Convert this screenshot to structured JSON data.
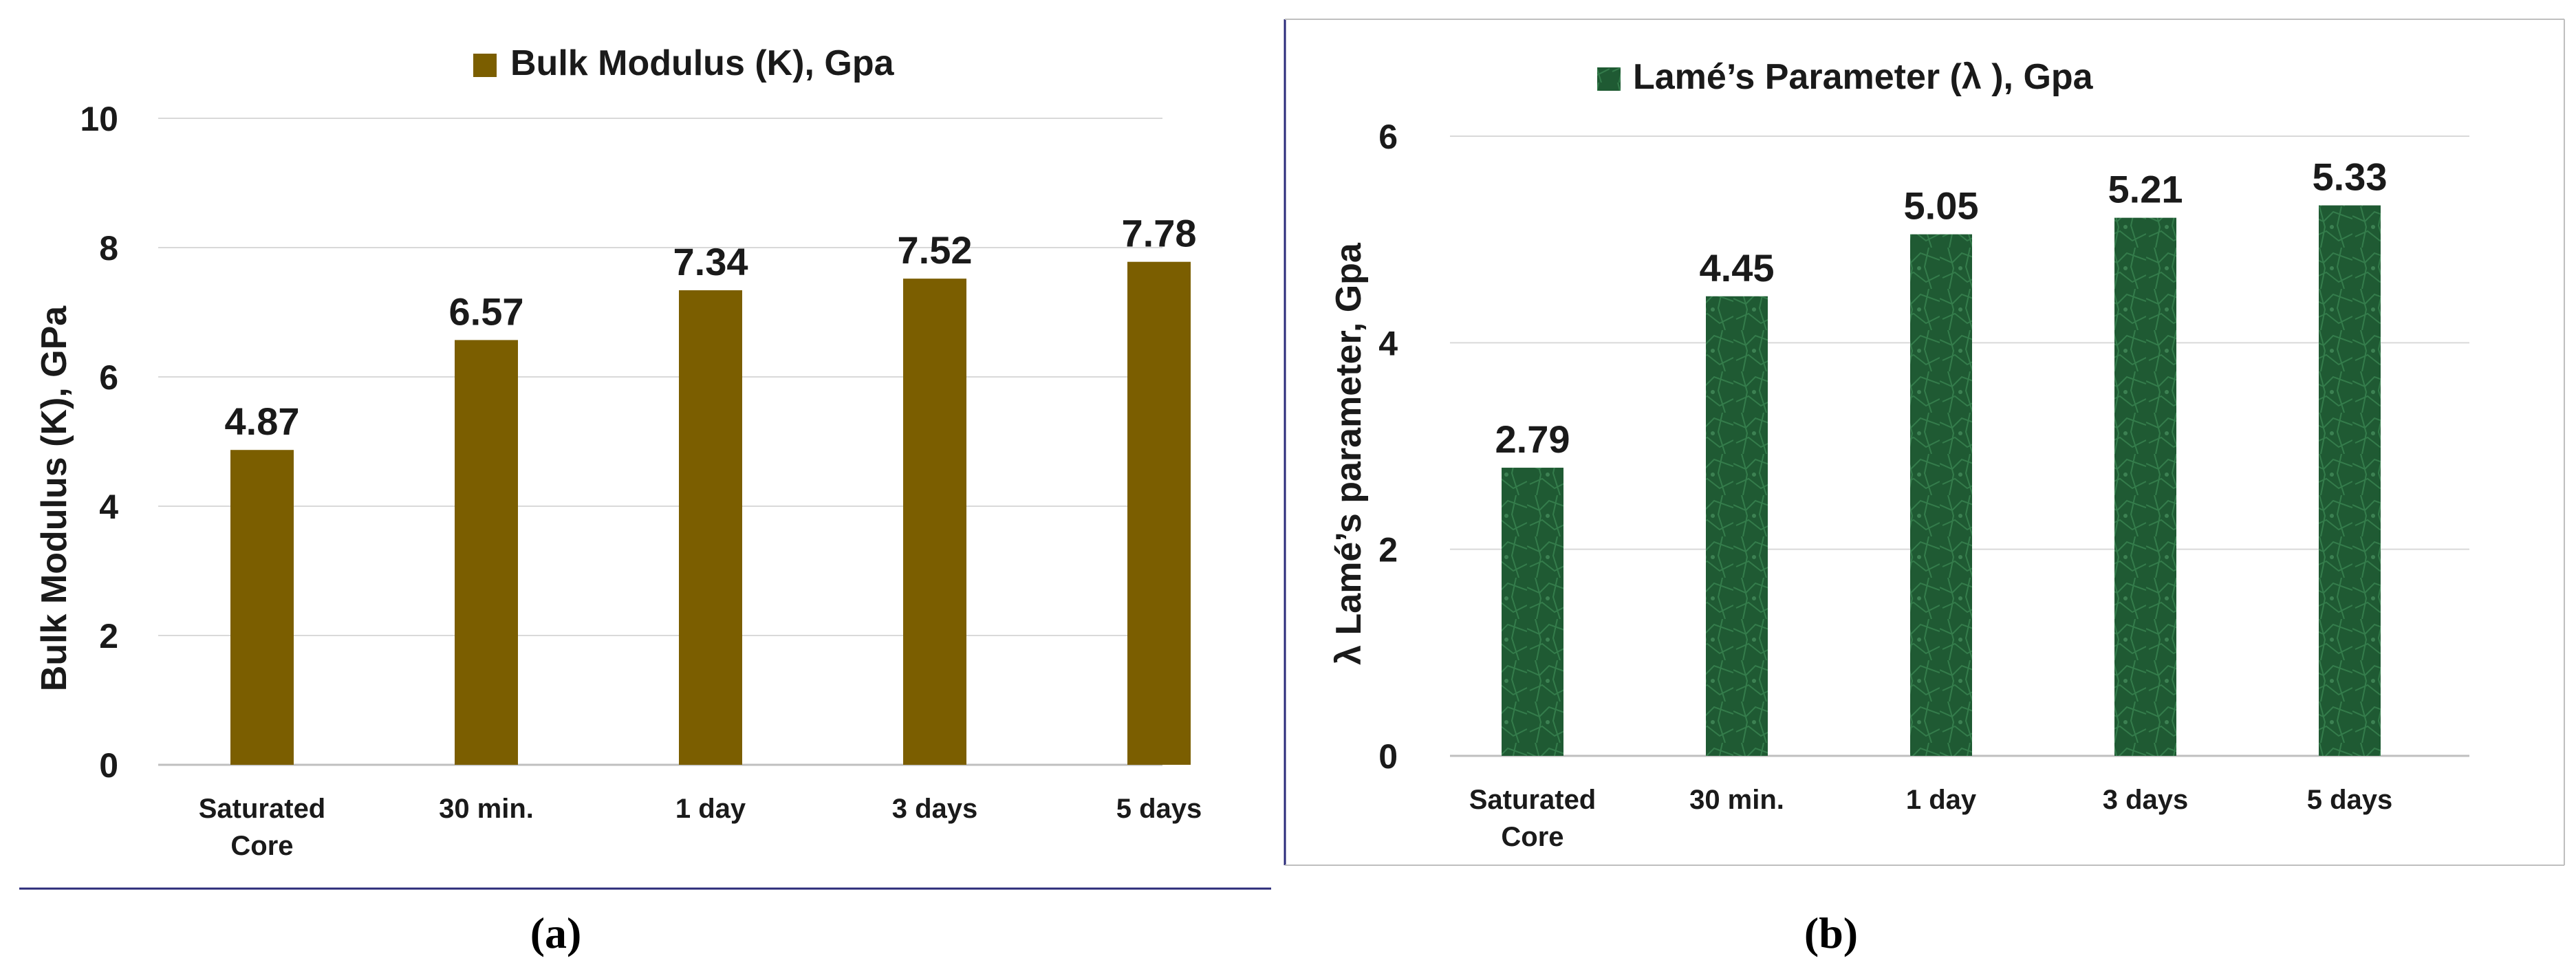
{
  "colors": {
    "bulk_bar": "#7b5e00",
    "lame_bar": "#1f5a33",
    "lame_bar_light": "#3d8a55",
    "rule": "#2b2b7a",
    "grid": "#d9d9d9",
    "axis": "#bfbfbf"
  },
  "chart_data": [
    {
      "type": "bar",
      "legend": "Bulk Modulus (K), Gpa",
      "ylabel": "Bulk Modulus (K), GPa",
      "caption": "(a)",
      "ylim": [
        0,
        10
      ],
      "yticks": [
        0,
        2,
        4,
        6,
        8,
        10
      ],
      "grid": true,
      "legend_position": "top",
      "categories": [
        [
          "Saturated",
          "Core"
        ],
        [
          "30 min."
        ],
        [
          "1 day"
        ],
        [
          "3 days"
        ],
        [
          "5 days"
        ]
      ],
      "values": [
        4.87,
        6.57,
        7.34,
        7.52,
        7.78
      ],
      "value_labels": [
        "4.87",
        "6.57",
        "7.34",
        "7.52",
        "7.78"
      ]
    },
    {
      "type": "bar",
      "legend": "Lamé’s Parameter (λ ), Gpa",
      "ylabel": "λ Lamé’s parameter, Gpa",
      "caption": "(b)",
      "ylim": [
        0,
        6
      ],
      "yticks": [
        0,
        2,
        4,
        6
      ],
      "grid": true,
      "legend_position": "top",
      "categories": [
        [
          "Saturated",
          "Core"
        ],
        [
          "30 min."
        ],
        [
          "1 day"
        ],
        [
          "3 days"
        ],
        [
          "5 days"
        ]
      ],
      "values": [
        2.79,
        4.45,
        5.05,
        5.21,
        5.33
      ],
      "value_labels": [
        "2.79",
        "4.45",
        "5.05",
        "5.21",
        "5.33"
      ]
    }
  ]
}
